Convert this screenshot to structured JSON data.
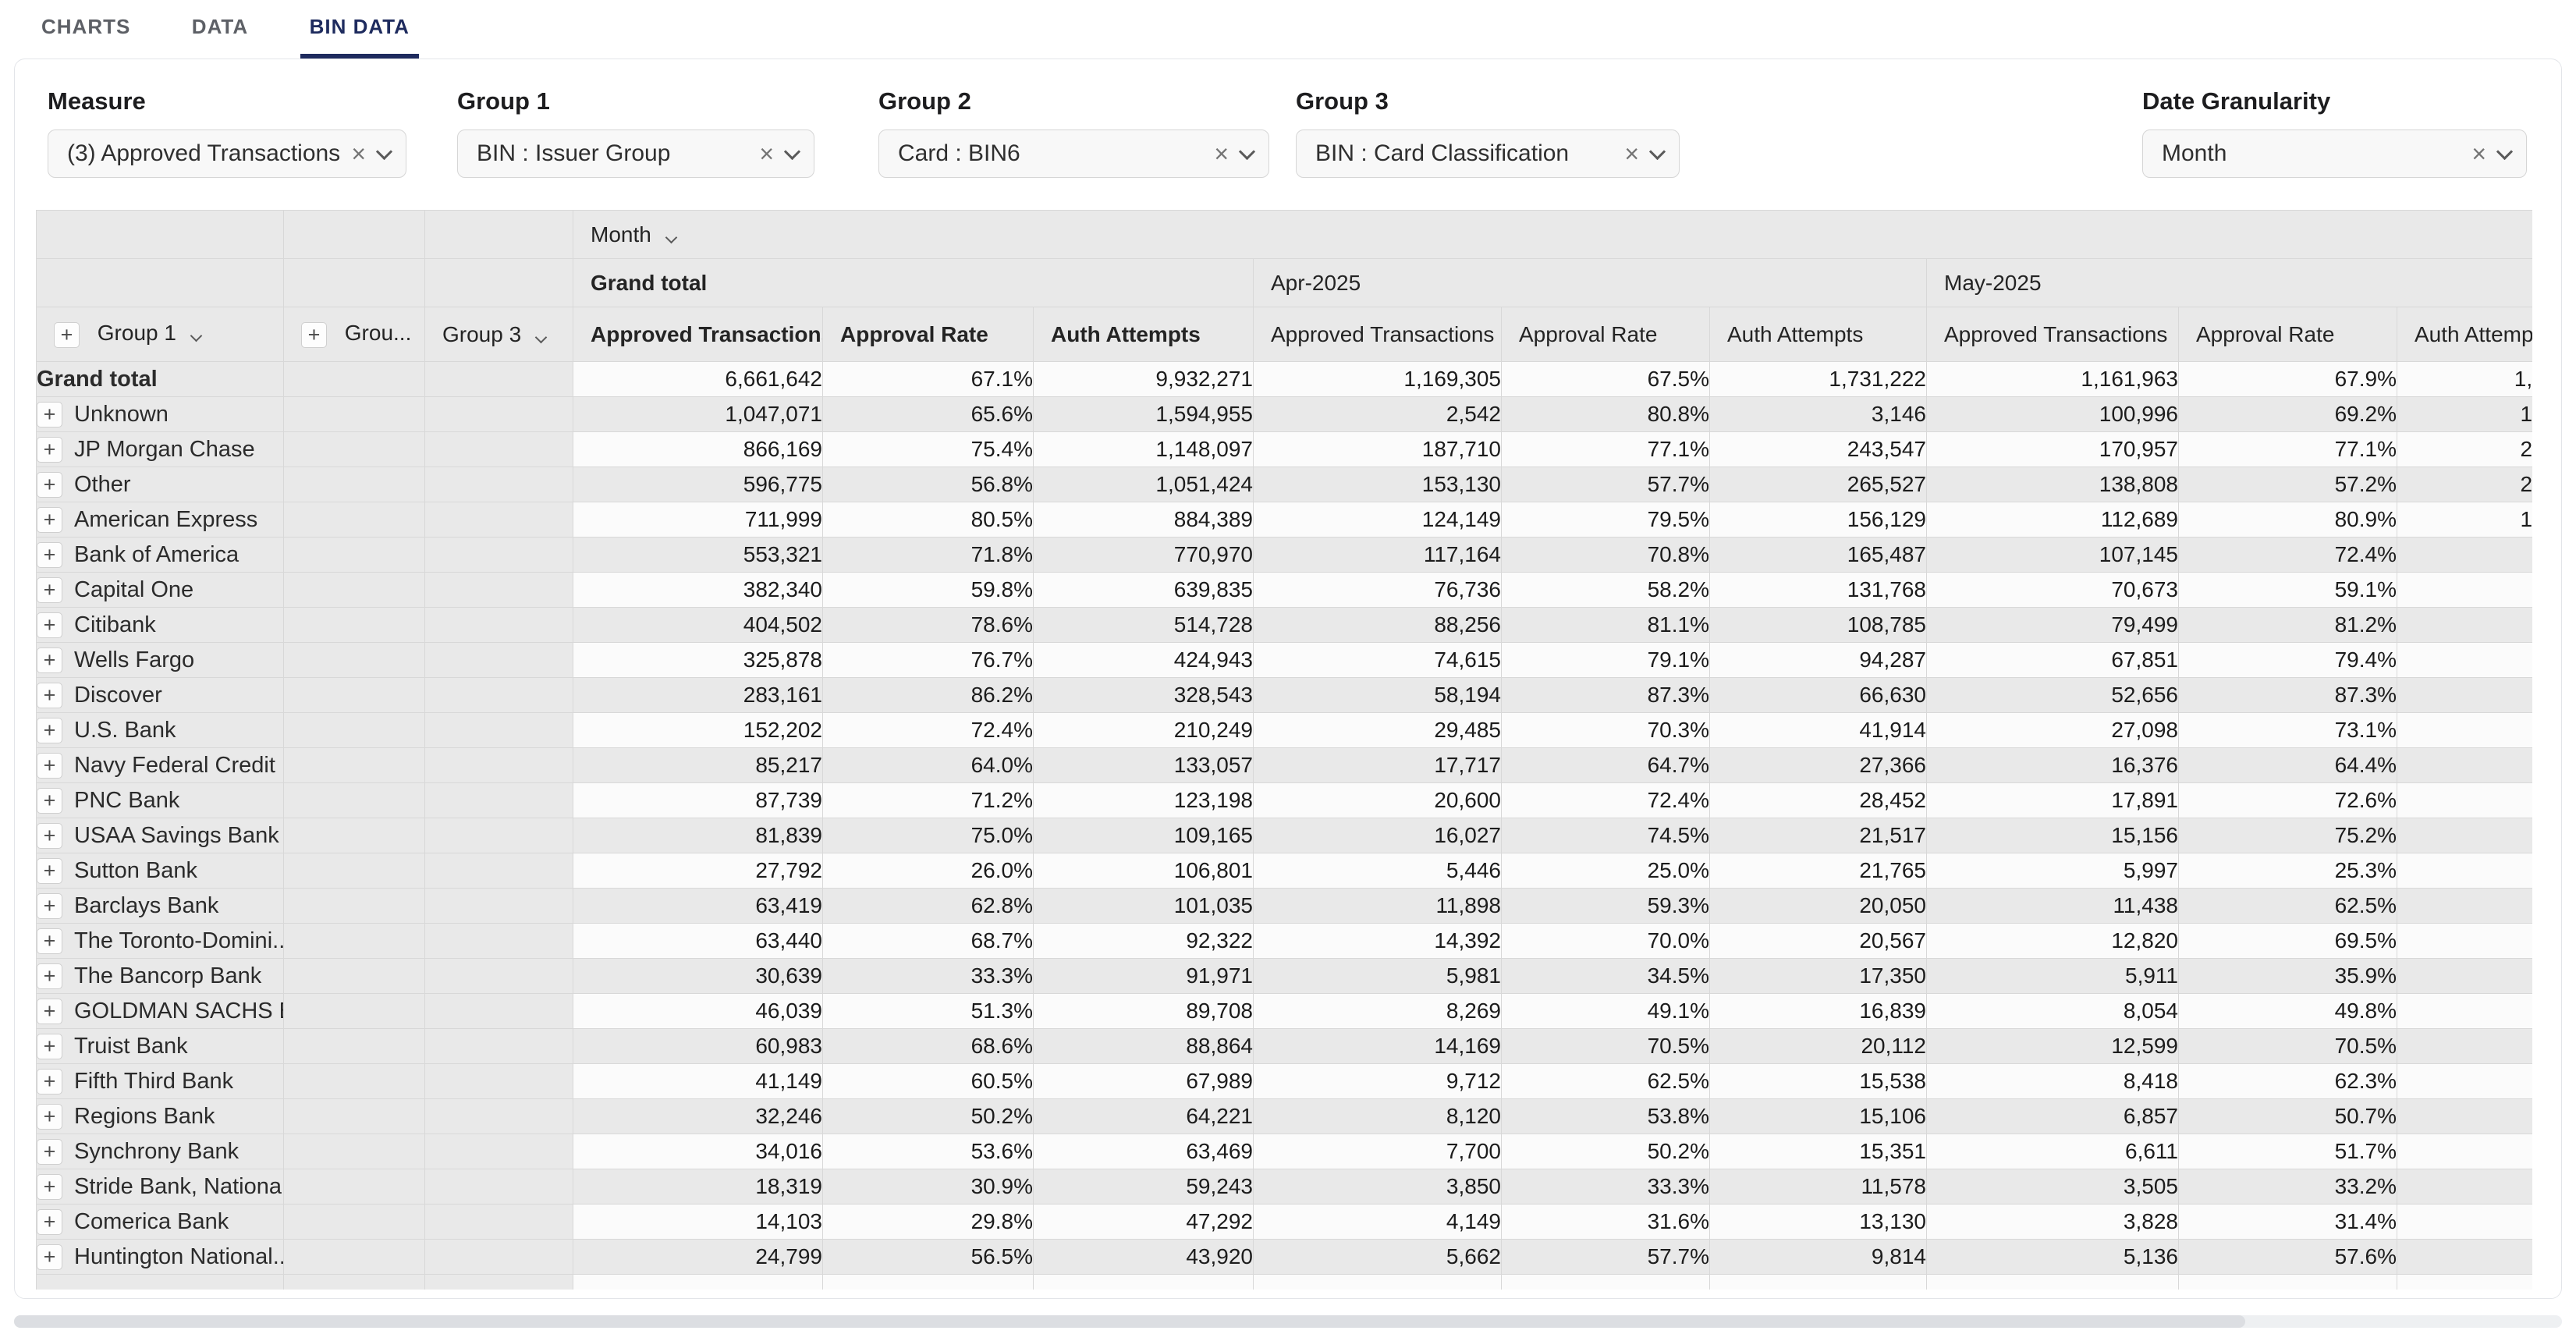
{
  "tabs": {
    "items": [
      {
        "label": "CHARTS"
      },
      {
        "label": "DATA"
      },
      {
        "label": "BIN DATA"
      }
    ],
    "active": "BIN DATA"
  },
  "filters": [
    {
      "label": "Measure",
      "value": "(3) Approved Transactions, ..."
    },
    {
      "label": "Group 1",
      "value": "BIN : Issuer Group"
    },
    {
      "label": "Group 2",
      "value": "Card : BIN6"
    },
    {
      "label": "Group 3",
      "value": "BIN : Card Classification"
    },
    {
      "label": "Date Granularity",
      "value": "Month"
    }
  ],
  "pivot": {
    "month_selector": "Month",
    "col_groups": [
      "Grand total",
      "Apr-2025",
      "May-2025"
    ],
    "metrics": [
      "Approved Transactions",
      "Approval Rate",
      "Auth Attempts"
    ],
    "row_group_headers": [
      "Group 1",
      "Grou...",
      "Group 3"
    ],
    "rows": [
      {
        "label": "Grand total",
        "cells": [
          "6,661,642",
          "67.1%",
          "9,932,271",
          "1,169,305",
          "67.5%",
          "1,731,222",
          "1,161,963",
          "67.9%",
          "1,"
        ]
      },
      {
        "label": "Unknown",
        "cells": [
          "1,047,071",
          "65.6%",
          "1,594,955",
          "2,542",
          "80.8%",
          "3,146",
          "100,996",
          "69.2%",
          "1"
        ]
      },
      {
        "label": "JP Morgan Chase",
        "cells": [
          "866,169",
          "75.4%",
          "1,148,097",
          "187,710",
          "77.1%",
          "243,547",
          "170,957",
          "77.1%",
          "2"
        ]
      },
      {
        "label": "Other",
        "cells": [
          "596,775",
          "56.8%",
          "1,051,424",
          "153,130",
          "57.7%",
          "265,527",
          "138,808",
          "57.2%",
          "2"
        ]
      },
      {
        "label": "American Express",
        "cells": [
          "711,999",
          "80.5%",
          "884,389",
          "124,149",
          "79.5%",
          "156,129",
          "112,689",
          "80.9%",
          "1"
        ]
      },
      {
        "label": "Bank of America",
        "cells": [
          "553,321",
          "71.8%",
          "770,970",
          "117,164",
          "70.8%",
          "165,487",
          "107,145",
          "72.4%",
          ""
        ]
      },
      {
        "label": "Capital One",
        "cells": [
          "382,340",
          "59.8%",
          "639,835",
          "76,736",
          "58.2%",
          "131,768",
          "70,673",
          "59.1%",
          ""
        ]
      },
      {
        "label": "Citibank",
        "cells": [
          "404,502",
          "78.6%",
          "514,728",
          "88,256",
          "81.1%",
          "108,785",
          "79,499",
          "81.2%",
          ""
        ]
      },
      {
        "label": "Wells Fargo",
        "cells": [
          "325,878",
          "76.7%",
          "424,943",
          "74,615",
          "79.1%",
          "94,287",
          "67,851",
          "79.4%",
          ""
        ]
      },
      {
        "label": "Discover",
        "cells": [
          "283,161",
          "86.2%",
          "328,543",
          "58,194",
          "87.3%",
          "66,630",
          "52,656",
          "87.3%",
          ""
        ]
      },
      {
        "label": "U.S. Bank",
        "cells": [
          "152,202",
          "72.4%",
          "210,249",
          "29,485",
          "70.3%",
          "41,914",
          "27,098",
          "73.1%",
          ""
        ]
      },
      {
        "label": "Navy Federal Credit ...",
        "cells": [
          "85,217",
          "64.0%",
          "133,057",
          "17,717",
          "64.7%",
          "27,366",
          "16,376",
          "64.4%",
          ""
        ]
      },
      {
        "label": "PNC Bank",
        "cells": [
          "87,739",
          "71.2%",
          "123,198",
          "20,600",
          "72.4%",
          "28,452",
          "17,891",
          "72.6%",
          ""
        ]
      },
      {
        "label": "USAA Savings Bank",
        "cells": [
          "81,839",
          "75.0%",
          "109,165",
          "16,027",
          "74.5%",
          "21,517",
          "15,156",
          "75.2%",
          ""
        ]
      },
      {
        "label": "Sutton Bank",
        "cells": [
          "27,792",
          "26.0%",
          "106,801",
          "5,446",
          "25.0%",
          "21,765",
          "5,997",
          "25.3%",
          ""
        ]
      },
      {
        "label": "Barclays Bank",
        "cells": [
          "63,419",
          "62.8%",
          "101,035",
          "11,898",
          "59.3%",
          "20,050",
          "11,438",
          "62.5%",
          ""
        ]
      },
      {
        "label": "The Toronto-Domini...",
        "cells": [
          "63,440",
          "68.7%",
          "92,322",
          "14,392",
          "70.0%",
          "20,567",
          "12,820",
          "69.5%",
          ""
        ]
      },
      {
        "label": "The Bancorp Bank",
        "cells": [
          "30,639",
          "33.3%",
          "91,971",
          "5,981",
          "34.5%",
          "17,350",
          "5,911",
          "35.9%",
          ""
        ]
      },
      {
        "label": "GOLDMAN SACHS B...",
        "cells": [
          "46,039",
          "51.3%",
          "89,708",
          "8,269",
          "49.1%",
          "16,839",
          "8,054",
          "49.8%",
          ""
        ]
      },
      {
        "label": "Truist Bank",
        "cells": [
          "60,983",
          "68.6%",
          "88,864",
          "14,169",
          "70.5%",
          "20,112",
          "12,599",
          "70.5%",
          ""
        ]
      },
      {
        "label": "Fifth Third Bank",
        "cells": [
          "41,149",
          "60.5%",
          "67,989",
          "9,712",
          "62.5%",
          "15,538",
          "8,418",
          "62.3%",
          ""
        ]
      },
      {
        "label": "Regions Bank",
        "cells": [
          "32,246",
          "50.2%",
          "64,221",
          "8,120",
          "53.8%",
          "15,106",
          "6,857",
          "50.7%",
          ""
        ]
      },
      {
        "label": "Synchrony Bank",
        "cells": [
          "34,016",
          "53.6%",
          "63,469",
          "7,700",
          "50.2%",
          "15,351",
          "6,611",
          "51.7%",
          ""
        ]
      },
      {
        "label": "Stride Bank, Nationa...",
        "cells": [
          "18,319",
          "30.9%",
          "59,243",
          "3,850",
          "33.3%",
          "11,578",
          "3,505",
          "33.2%",
          ""
        ]
      },
      {
        "label": "Comerica Bank",
        "cells": [
          "14,103",
          "29.8%",
          "47,292",
          "4,149",
          "31.6%",
          "13,130",
          "3,828",
          "31.4%",
          ""
        ]
      },
      {
        "label": "Huntington National...",
        "cells": [
          "24,799",
          "56.5%",
          "43,920",
          "5,662",
          "57.7%",
          "9,814",
          "5,136",
          "57.6%",
          ""
        ]
      }
    ]
  },
  "colors": {
    "accent_navy": "#1e2b5e",
    "header_grey": "#e9e9e9",
    "stripe_white": "#fbfbfb"
  }
}
